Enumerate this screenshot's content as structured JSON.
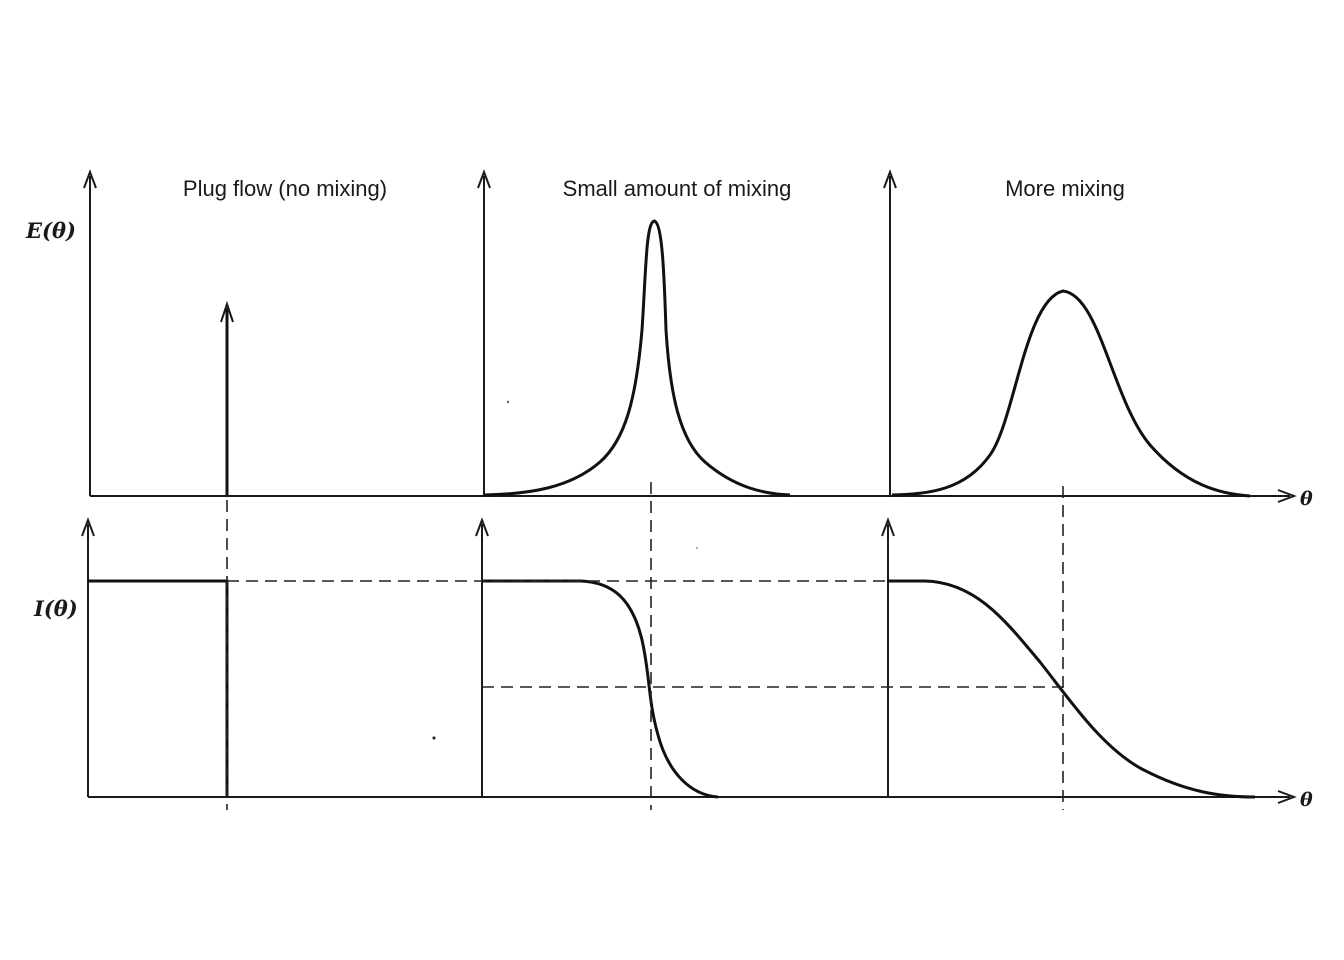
{
  "panels": [
    {
      "title": "Plug flow (no mixing)"
    },
    {
      "title": "Small amount of mixing"
    },
    {
      "title": "More mixing"
    }
  ],
  "axes": {
    "top_y_label": "E(θ)",
    "bottom_y_label": "I(θ)",
    "x_label": "θ"
  }
}
